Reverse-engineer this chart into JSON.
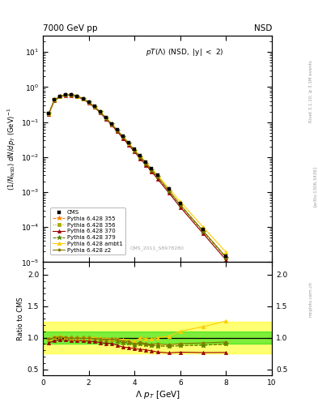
{
  "title_left": "7000 GeV pp",
  "title_right": "NSD",
  "annotation": "pT(Λ) (NSD, |y| < 2)",
  "cms_label": "CMS_2011_S8978280",
  "xlabel": "Λ p_{T} [GeV]",
  "ylabel_main": "(1/N_{NSD}) dN/dp_{T} (GeV)^{-1}",
  "ylabel_ratio": "Ratio to CMS",
  "xlim": [
    0,
    10
  ],
  "ylim_main": [
    1e-05,
    30
  ],
  "ylim_ratio": [
    0.4,
    2.2
  ],
  "ratio_yticks": [
    0.5,
    1.0,
    1.5,
    2.0
  ],
  "cms_x": [
    0.25,
    0.5,
    0.75,
    1.0,
    1.25,
    1.5,
    1.75,
    2.0,
    2.25,
    2.5,
    2.75,
    3.0,
    3.25,
    3.5,
    3.75,
    4.0,
    4.25,
    4.5,
    4.75,
    5.0,
    5.5,
    6.0,
    7.0,
    8.0
  ],
  "cms_y": [
    0.18,
    0.43,
    0.54,
    0.6,
    0.6,
    0.55,
    0.47,
    0.37,
    0.28,
    0.2,
    0.135,
    0.09,
    0.06,
    0.04,
    0.026,
    0.017,
    0.011,
    0.0073,
    0.0048,
    0.0031,
    0.00125,
    0.00048,
    8.5e-05,
    1.5e-05
  ],
  "pythia_x": [
    0.25,
    0.5,
    0.75,
    1.0,
    1.25,
    1.5,
    1.75,
    2.0,
    2.25,
    2.5,
    2.75,
    3.0,
    3.25,
    3.5,
    3.75,
    4.0,
    4.25,
    4.5,
    4.75,
    5.0,
    5.5,
    6.0,
    7.0,
    8.0
  ],
  "p355_y": [
    0.175,
    0.43,
    0.545,
    0.6,
    0.595,
    0.545,
    0.465,
    0.365,
    0.275,
    0.195,
    0.13,
    0.087,
    0.057,
    0.037,
    0.024,
    0.015,
    0.01,
    0.0065,
    0.0042,
    0.0027,
    0.00108,
    0.00042,
    7.5e-05,
    1.35e-05
  ],
  "p356_y": [
    0.175,
    0.43,
    0.545,
    0.6,
    0.595,
    0.545,
    0.465,
    0.365,
    0.275,
    0.195,
    0.13,
    0.087,
    0.057,
    0.037,
    0.024,
    0.015,
    0.01,
    0.0065,
    0.0042,
    0.0027,
    0.00108,
    0.00042,
    7.5e-05,
    1.35e-05
  ],
  "p370_y": [
    0.165,
    0.41,
    0.525,
    0.58,
    0.575,
    0.525,
    0.448,
    0.35,
    0.263,
    0.185,
    0.123,
    0.082,
    0.053,
    0.034,
    0.022,
    0.014,
    0.009,
    0.0059,
    0.0038,
    0.0024,
    0.00095,
    0.00037,
    6.5e-05,
    1.15e-05
  ],
  "p379_y": [
    0.175,
    0.43,
    0.545,
    0.6,
    0.595,
    0.545,
    0.465,
    0.365,
    0.275,
    0.195,
    0.13,
    0.087,
    0.057,
    0.037,
    0.024,
    0.015,
    0.01,
    0.0065,
    0.0042,
    0.0027,
    0.00108,
    0.00042,
    7.5e-05,
    1.35e-05
  ],
  "pambt1_y": [
    0.177,
    0.435,
    0.55,
    0.605,
    0.6,
    0.55,
    0.47,
    0.37,
    0.28,
    0.198,
    0.133,
    0.089,
    0.059,
    0.039,
    0.025,
    0.016,
    0.011,
    0.0072,
    0.0047,
    0.0031,
    0.00128,
    0.00053,
    0.0001,
    1.9e-05
  ],
  "pz2_y": [
    0.176,
    0.432,
    0.547,
    0.602,
    0.597,
    0.547,
    0.467,
    0.367,
    0.277,
    0.196,
    0.131,
    0.088,
    0.058,
    0.038,
    0.0245,
    0.0153,
    0.0102,
    0.0066,
    0.0043,
    0.0028,
    0.00111,
    0.000435,
    7.8e-05,
    1.4e-05
  ],
  "ratio_x": [
    0.25,
    0.5,
    0.75,
    1.0,
    1.25,
    1.5,
    1.75,
    2.0,
    2.25,
    2.5,
    2.75,
    3.0,
    3.25,
    3.5,
    3.75,
    4.0,
    4.25,
    4.5,
    4.75,
    5.0,
    5.5,
    6.0,
    7.0,
    8.0
  ],
  "r355": [
    0.97,
    1.0,
    1.01,
    1.0,
    0.99,
    0.99,
    0.99,
    0.99,
    0.98,
    0.975,
    0.963,
    0.967,
    0.95,
    0.925,
    0.923,
    0.882,
    0.909,
    0.89,
    0.875,
    0.871,
    0.864,
    0.875,
    0.882,
    0.9
  ],
  "r356": [
    0.97,
    1.0,
    1.01,
    1.0,
    0.99,
    0.99,
    0.99,
    0.99,
    0.982,
    0.975,
    0.963,
    0.967,
    0.95,
    0.925,
    0.923,
    0.882,
    0.909,
    0.89,
    0.875,
    0.871,
    0.864,
    0.875,
    0.882,
    0.9
  ],
  "r370": [
    0.917,
    0.953,
    0.972,
    0.967,
    0.958,
    0.955,
    0.953,
    0.946,
    0.939,
    0.925,
    0.911,
    0.911,
    0.883,
    0.85,
    0.846,
    0.824,
    0.818,
    0.808,
    0.792,
    0.774,
    0.76,
    0.771,
    0.765,
    0.767
  ],
  "r379": [
    0.97,
    1.0,
    1.01,
    1.0,
    0.99,
    0.99,
    0.99,
    0.99,
    0.982,
    0.975,
    0.963,
    0.967,
    0.95,
    0.925,
    0.923,
    0.882,
    0.909,
    0.89,
    0.875,
    0.871,
    0.864,
    0.875,
    0.882,
    0.9
  ],
  "rambt1": [
    0.983,
    1.012,
    1.019,
    1.008,
    1.0,
    1.0,
    1.0,
    1.0,
    1.0,
    0.99,
    0.985,
    0.989,
    0.983,
    0.975,
    0.962,
    0.941,
    1.0,
    0.986,
    0.979,
    1.0,
    1.024,
    1.104,
    1.176,
    1.267
  ],
  "rz2": [
    0.978,
    1.005,
    1.013,
    1.003,
    0.995,
    0.995,
    0.994,
    0.992,
    0.989,
    0.98,
    0.97,
    0.978,
    0.967,
    0.95,
    0.942,
    0.9,
    0.927,
    0.904,
    0.896,
    0.903,
    0.888,
    0.906,
    0.918,
    0.933
  ],
  "band_yellow_lo": 0.75,
  "band_yellow_hi": 1.25,
  "band_green_lo": 0.9,
  "band_green_hi": 1.1,
  "color_cms": "#000000",
  "color_355": "#ff8000",
  "color_356": "#aaaa00",
  "color_370": "#990000",
  "color_379": "#558800",
  "color_ambt1": "#ffcc00",
  "color_z2": "#887700",
  "legend_labels": [
    "CMS",
    "Pythia 6.428 355",
    "Pythia 6.428 356",
    "Pythia 6.428 370",
    "Pythia 6.428 379",
    "Pythia 6.428 ambt1",
    "Pythia 6.428 z2"
  ]
}
